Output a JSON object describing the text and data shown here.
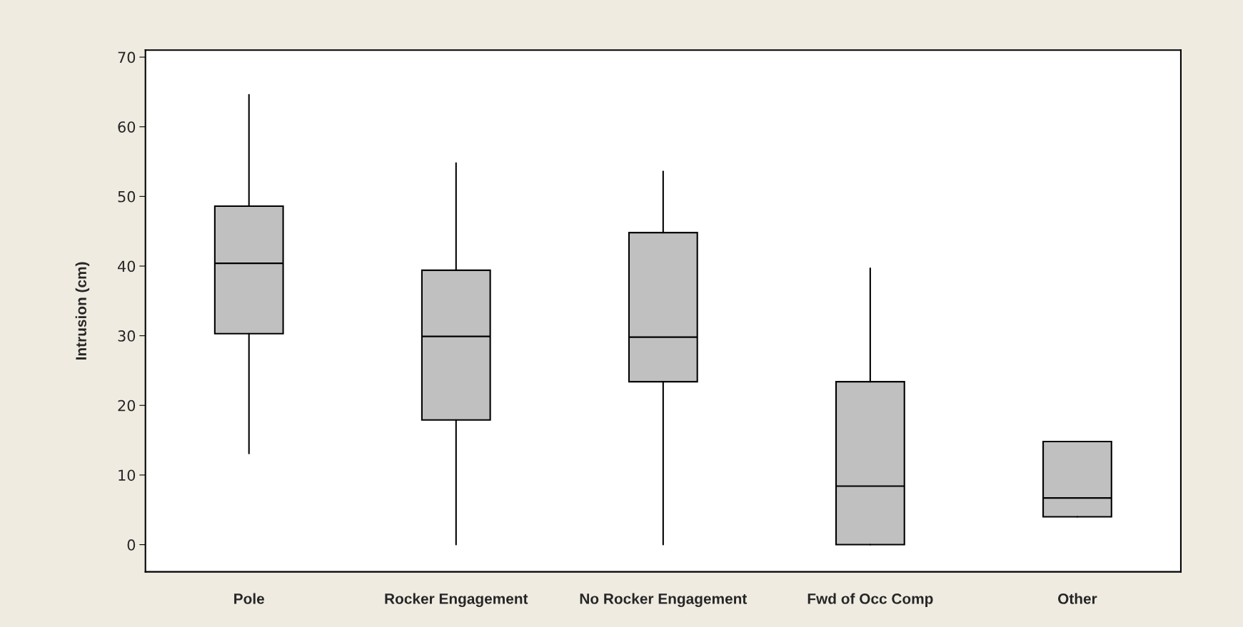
{
  "chart_data": {
    "type": "box",
    "ylabel": "Intrusion (cm)",
    "categories": [
      "Pole",
      "Rocker Engagement",
      "No Rocker Engagement",
      "Fwd of Occ Comp",
      "Other"
    ],
    "boxes": [
      {
        "low": 13.1,
        "q1": 30.3,
        "median": 40.4,
        "q3": 48.6,
        "high": 64.6
      },
      {
        "low": 0,
        "q1": 17.9,
        "median": 29.9,
        "q3": 39.4,
        "high": 54.8
      },
      {
        "low": 0,
        "q1": 23.4,
        "median": 29.8,
        "q3": 44.8,
        "high": 53.6
      },
      {
        "low": 0,
        "q1": 0,
        "median": 8.4,
        "q3": 23.4,
        "high": 39.7
      },
      {
        "low": 4.0,
        "q1": 4.0,
        "median": 6.7,
        "q3": 14.8,
        "high": 14.8
      }
    ],
    "color": "#c0c0c0",
    "ylim": [
      -3.9,
      71
    ],
    "yticks": [
      0,
      10,
      20,
      30,
      40,
      50,
      60,
      70
    ],
    "grid": false
  }
}
